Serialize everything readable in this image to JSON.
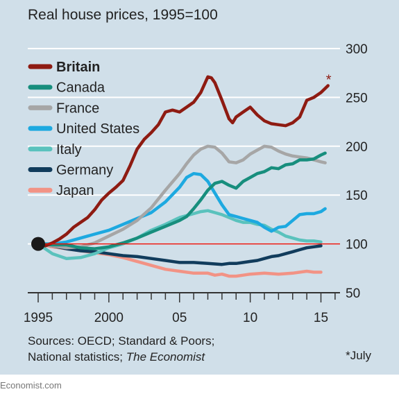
{
  "chart_data": {
    "type": "line",
    "subtitle": "Real house prices, 1995=100",
    "ylim": [
      50,
      300
    ],
    "yticks": [
      50,
      100,
      150,
      200,
      250,
      300
    ],
    "xlim": [
      1995,
      2016
    ],
    "xtick_labels": [
      {
        "year": 1995,
        "label": "1995"
      },
      {
        "year": 2000,
        "label": "2000"
      },
      {
        "year": 2005,
        "label": "05"
      },
      {
        "year": 2010,
        "label": "10"
      },
      {
        "year": 2015,
        "label": "15"
      }
    ],
    "reference_line": 100,
    "base_marker": {
      "year": 1995,
      "value": 100
    },
    "legend_position": "top-left",
    "series": [
      {
        "name": "Britain",
        "color": "#8e1b12",
        "bold": true,
        "x": [
          1995,
          1995.5,
          1996,
          1996.5,
          1997,
          1997.5,
          1998,
          1998.5,
          1999,
          1999.5,
          2000,
          2000.5,
          2001,
          2001.5,
          2002,
          2002.5,
          2003,
          2003.5,
          2004,
          2004.5,
          2005,
          2005.5,
          2006,
          2006.5,
          2007,
          2007.25,
          2007.5,
          2008,
          2008.5,
          2008.75,
          2009,
          2009.5,
          2010,
          2010.5,
          2011,
          2011.5,
          2012,
          2012.5,
          2013,
          2013.5,
          2014,
          2014.5,
          2015,
          2015.5
        ],
        "y": [
          100,
          98,
          101,
          105,
          110,
          117,
          122,
          127,
          135,
          145,
          152,
          158,
          165,
          180,
          197,
          207,
          214,
          222,
          235,
          237,
          235,
          240,
          245,
          255,
          271,
          270,
          265,
          247,
          228,
          224,
          230,
          235,
          240,
          232,
          226,
          223,
          222,
          221,
          224,
          230,
          247,
          250,
          255,
          262
        ]
      },
      {
        "name": "Canada",
        "color": "#178e7d",
        "x": [
          1995,
          1996,
          1997,
          1998,
          1999,
          2000,
          2001,
          2002,
          2003,
          2004,
          2005,
          2005.5,
          2006,
          2006.5,
          2007,
          2007.5,
          2008,
          2008.5,
          2009,
          2009.5,
          2010,
          2010.5,
          2011,
          2011.5,
          2012,
          2012.5,
          2013,
          2013.5,
          2014,
          2014.5,
          2015,
          2015.3
        ],
        "y": [
          100,
          99,
          99,
          96,
          95,
          97,
          101,
          106,
          112,
          118,
          124,
          128,
          136,
          145,
          155,
          162,
          164,
          160,
          157,
          164,
          168,
          172,
          174,
          178,
          177,
          181,
          182,
          186,
          186,
          187,
          191,
          193
        ]
      },
      {
        "name": "France",
        "color": "#a6a6a6",
        "x": [
          1995,
          1996,
          1997,
          1998,
          1999,
          2000,
          2001,
          2002,
          2003,
          2004,
          2005,
          2005.5,
          2006,
          2006.5,
          2007,
          2007.5,
          2008,
          2008.5,
          2009,
          2009.5,
          2010,
          2010.5,
          2011,
          2011.5,
          2012,
          2012.5,
          2013,
          2013.5,
          2014,
          2014.5,
          2015,
          2015.3
        ],
        "y": [
          100,
          98,
          96,
          97,
          101,
          108,
          115,
          124,
          137,
          155,
          172,
          182,
          191,
          197,
          200,
          199,
          193,
          184,
          183,
          186,
          192,
          196,
          200,
          199,
          195,
          192,
          190,
          189,
          188,
          186,
          184,
          183
        ]
      },
      {
        "name": "United States",
        "color": "#1da9e0",
        "x": [
          1995,
          1996,
          1997,
          1998,
          1999,
          2000,
          2001,
          2002,
          2003,
          2004,
          2005,
          2005.5,
          2006,
          2006.5,
          2007,
          2007.5,
          2008,
          2008.5,
          2009,
          2009.5,
          2010,
          2010.5,
          2011,
          2011.5,
          2012,
          2012.5,
          2013,
          2013.5,
          2014,
          2014.5,
          2015,
          2015.3
        ],
        "y": [
          100,
          100,
          102,
          106,
          110,
          114,
          120,
          126,
          132,
          143,
          158,
          168,
          172,
          171,
          164,
          152,
          140,
          130,
          128,
          126,
          124,
          122,
          117,
          113,
          117,
          118,
          124,
          130,
          131,
          131,
          133,
          136
        ]
      },
      {
        "name": "Italy",
        "color": "#5ac2bd",
        "x": [
          1995,
          1996,
          1997,
          1998,
          1999,
          2000,
          2001,
          2002,
          2003,
          2004,
          2005,
          2005.5,
          2006,
          2006.5,
          2007,
          2007.5,
          2008,
          2008.5,
          2009,
          2009.5,
          2010,
          2010.5,
          2011,
          2011.5,
          2012,
          2012.5,
          2013,
          2013.5,
          2014,
          2014.5,
          2015
        ],
        "y": [
          100,
          90,
          85,
          86,
          90,
          96,
          100,
          106,
          114,
          120,
          127,
          129,
          131,
          133,
          134,
          132,
          130,
          127,
          124,
          122,
          122,
          120,
          119,
          115,
          112,
          108,
          106,
          104,
          103,
          103,
          102
        ]
      },
      {
        "name": "Germany",
        "color": "#113c5c",
        "x": [
          1995,
          1996,
          1997,
          1998,
          1999,
          2000,
          2001,
          2002,
          2003,
          2004,
          2005,
          2006,
          2007,
          2008,
          2008.5,
          2009,
          2009.5,
          2010,
          2010.5,
          2011,
          2011.5,
          2012,
          2012.5,
          2013,
          2013.5,
          2014,
          2014.5,
          2015
        ],
        "y": [
          100,
          98,
          95,
          93,
          92,
          90,
          88,
          87,
          85,
          83,
          81,
          81,
          80,
          79,
          80,
          80,
          81,
          82,
          83,
          85,
          87,
          88,
          90,
          92,
          94,
          96,
          97,
          98
        ]
      },
      {
        "name": "Japan",
        "color": "#f29385",
        "x": [
          1995,
          1996,
          1997,
          1998,
          1999,
          2000,
          2001,
          2002,
          2003,
          2004,
          2005,
          2006,
          2007,
          2007.5,
          2008,
          2008.5,
          2009,
          2009.5,
          2010,
          2011,
          2012,
          2013,
          2014,
          2014.5,
          2015
        ],
        "y": [
          100,
          97,
          95,
          93,
          91,
          89,
          86,
          82,
          78,
          74,
          72,
          70,
          70,
          68,
          69,
          67,
          67,
          68,
          69,
          70,
          69,
          70,
          72,
          71,
          71
        ]
      }
    ],
    "annotation": {
      "text": "*",
      "color": "#8e1b12",
      "series": "Britain"
    }
  },
  "sources": {
    "line1": "Sources: OECD; Standard & Poors;",
    "line2_plain": "National statistics; ",
    "line2_italic": "The Economist"
  },
  "footnote": "*July",
  "credit": "Economist.com"
}
